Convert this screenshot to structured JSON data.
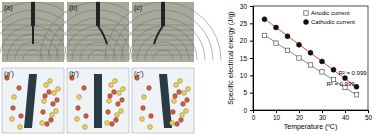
{
  "chart_data": {
    "type": "scatter",
    "x_label": "Temperature (ºC)",
    "y_label": "Specific electrical energy (J/g)",
    "xlim": [
      0,
      50
    ],
    "xticks": [
      0,
      10,
      20,
      30,
      40,
      50
    ],
    "ylim": [
      0,
      30
    ],
    "yticks": [
      0,
      5,
      10,
      15,
      20,
      25,
      30
    ],
    "legend": "top-right",
    "series": [
      {
        "name": "Anodic current",
        "marker": "square",
        "color": "#555555",
        "x": [
          5,
          10,
          15,
          20,
          25,
          30,
          35,
          40,
          45
        ],
        "values": [
          21.5,
          19.3,
          17.2,
          15.0,
          13.0,
          11.0,
          8.8,
          6.5,
          4.4
        ],
        "fit_x": [
          5,
          45
        ],
        "fit_values": [
          21.6,
          4.3
        ],
        "fit_color": "#888888",
        "fit_label": "R² = 0.999"
      },
      {
        "name": "Cathodic current",
        "marker": "circle",
        "color": "#111111",
        "x": [
          5,
          10,
          15,
          20,
          25,
          30,
          35,
          40,
          45
        ],
        "values": [
          26.2,
          23.8,
          21.3,
          18.8,
          16.5,
          14.0,
          11.6,
          9.2,
          6.7
        ],
        "fit_x": [
          5,
          45
        ],
        "fit_values": [
          26.3,
          6.6
        ],
        "fit_color": "#e8503a",
        "fit_label": "R² = 0.999"
      }
    ]
  },
  "figure": {
    "panel_labels": [
      "(a)",
      "(b)",
      "(c)",
      "(a')",
      "(b')",
      "(c')"
    ]
  }
}
